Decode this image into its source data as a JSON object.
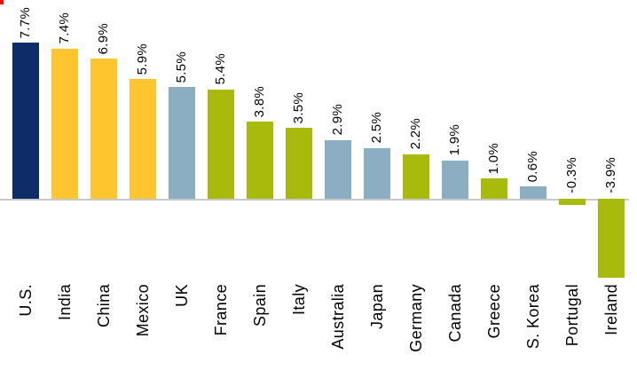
{
  "chart_data": {
    "type": "bar",
    "title": "",
    "orientation": "vertical",
    "grid": false,
    "legend": false,
    "ylim": [
      -4.5,
      8.5
    ],
    "categories": [
      "U.S.",
      "India",
      "China",
      "Mexico",
      "UK",
      "France",
      "Spain",
      "Italy",
      "Australia",
      "Japan",
      "Germany",
      "Canada",
      "Greece",
      "S. Korea",
      "Portugal",
      "Ireland"
    ],
    "values": [
      7.7,
      7.4,
      6.9,
      5.9,
      5.5,
      5.4,
      3.8,
      3.5,
      2.9,
      2.5,
      2.2,
      1.9,
      1.0,
      0.6,
      -0.3,
      -3.9
    ],
    "value_labels": [
      "7.7%",
      "7.4%",
      "6.9%",
      "5.9%",
      "5.5%",
      "5.4%",
      "3.8%",
      "3.5%",
      "2.9%",
      "2.5%",
      "2.2%",
      "1.9%",
      "1.0%",
      "0.6%",
      "-0.3%",
      "-3.9%"
    ],
    "bar_colors": [
      "navy",
      "gold",
      "gold",
      "gold",
      "blue",
      "olive",
      "olive",
      "olive",
      "blue",
      "blue",
      "olive",
      "blue",
      "olive",
      "blue",
      "olive",
      "olive"
    ],
    "palette": {
      "navy": "#0E2D68",
      "gold": "#FEC52E",
      "blue": "#8BAEC3",
      "olive": "#A8BA0B"
    },
    "axis_color": "#C9C9C9",
    "label_color": "#000000",
    "value_label_rotation_deg": 90,
    "category_label_rotation_deg": 90
  },
  "decorations": {
    "corner_mark_color": "#FF0000"
  }
}
